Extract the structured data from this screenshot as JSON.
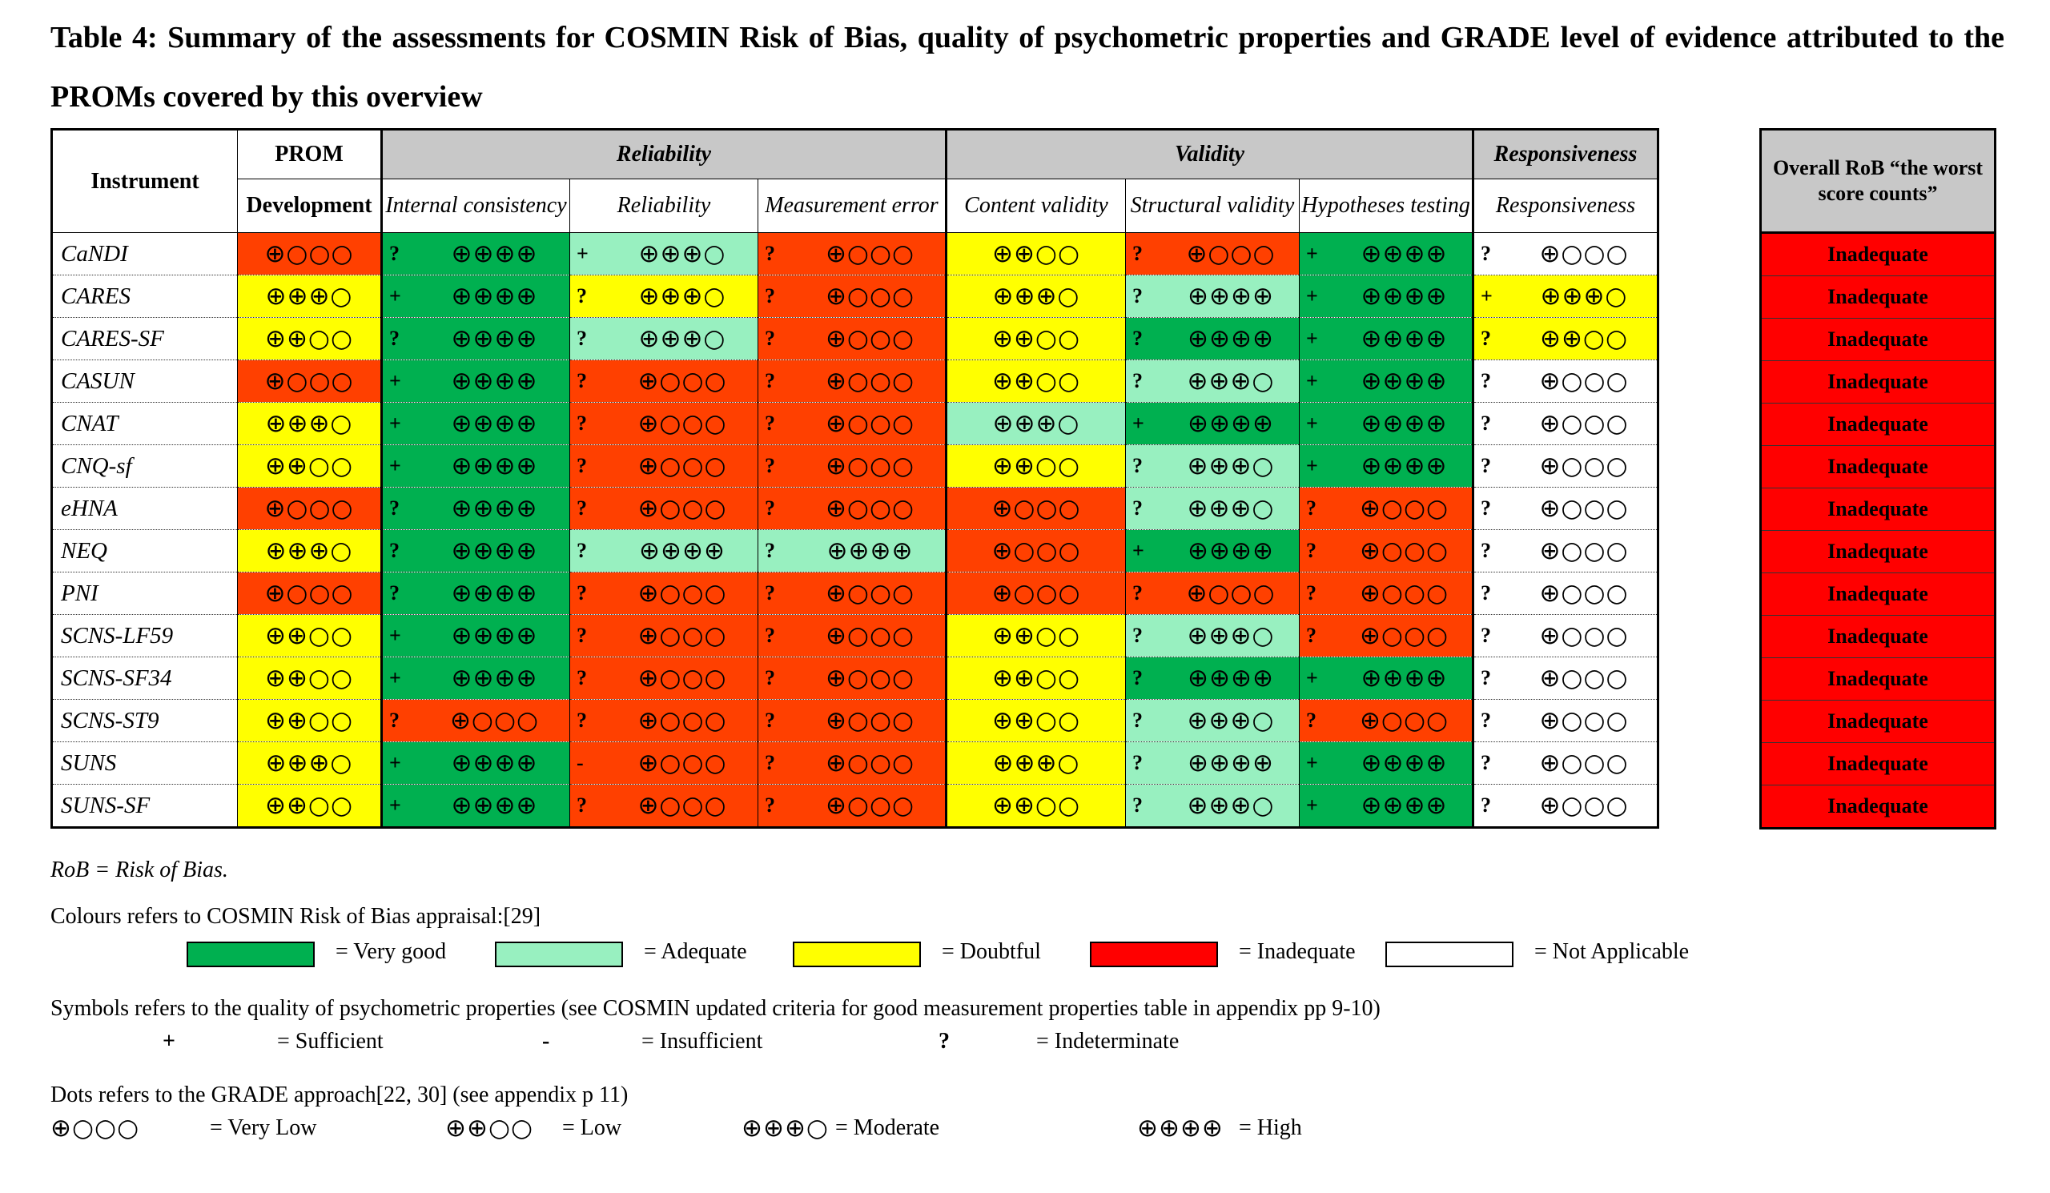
{
  "title": "Table 4:  Summary of the assessments for COSMIN Risk of Bias, quality of psychometric properties and GRADE level of evidence attributed to the PROMs covered by this overview",
  "header": {
    "instrument": "Instrument",
    "prom": "PROM",
    "development": "Development",
    "reliability_group": "Reliability",
    "validity_group": "Validity",
    "responsiveness_group": "Responsiveness",
    "internal_consistency": "Internal consistency",
    "reliability": "Reliability",
    "measurement_error": "Measurement error",
    "content_validity": "Content validity",
    "structural_validity": "Structural validity",
    "hypotheses_testing": "Hypotheses testing",
    "responsiveness": "Responsiveness"
  },
  "colors": {
    "very_good": "#00b050",
    "adequate": "#98f0c0",
    "doubtful": "#ffff00",
    "inadequate": "#ff0000",
    "not_applicable": "#ffffff"
  },
  "rows": [
    {
      "instrument": "CaNDI",
      "cells": [
        {
          "c": "in",
          "d": "⊕○○○"
        },
        {
          "c": "vg",
          "s": "?",
          "d": "⊕⊕⊕⊕"
        },
        {
          "c": "ad",
          "s": "+",
          "d": "⊕⊕⊕○"
        },
        {
          "c": "in",
          "s": "?",
          "d": "⊕○○○"
        },
        {
          "c": "db",
          "d": "⊕⊕○○"
        },
        {
          "c": "in",
          "s": "?",
          "d": "⊕○○○"
        },
        {
          "c": "vg",
          "s": "+",
          "d": "⊕⊕⊕⊕"
        },
        {
          "c": "na",
          "s": "?",
          "d": "⊕○○○"
        }
      ],
      "overall": "Inadequate"
    },
    {
      "instrument": "CARES",
      "cells": [
        {
          "c": "db",
          "d": "⊕⊕⊕○"
        },
        {
          "c": "vg",
          "s": "+",
          "d": "⊕⊕⊕⊕"
        },
        {
          "c": "db",
          "s": "?",
          "d": "⊕⊕⊕○"
        },
        {
          "c": "in",
          "s": "?",
          "d": "⊕○○○"
        },
        {
          "c": "db",
          "d": "⊕⊕⊕○"
        },
        {
          "c": "ad",
          "s": "?",
          "d": "⊕⊕⊕⊕"
        },
        {
          "c": "vg",
          "s": "+",
          "d": "⊕⊕⊕⊕"
        },
        {
          "c": "db",
          "s": "+",
          "d": "⊕⊕⊕○"
        }
      ],
      "overall": "Inadequate"
    },
    {
      "instrument": "CARES-SF",
      "cells": [
        {
          "c": "db",
          "d": "⊕⊕○○"
        },
        {
          "c": "vg",
          "s": "?",
          "d": "⊕⊕⊕⊕"
        },
        {
          "c": "ad",
          "s": "?",
          "d": "⊕⊕⊕○"
        },
        {
          "c": "in",
          "s": "?",
          "d": "⊕○○○"
        },
        {
          "c": "db",
          "d": "⊕⊕○○"
        },
        {
          "c": "vg",
          "s": "?",
          "d": "⊕⊕⊕⊕"
        },
        {
          "c": "vg",
          "s": "+",
          "d": "⊕⊕⊕⊕"
        },
        {
          "c": "db",
          "s": "?",
          "d": "⊕⊕○○"
        }
      ],
      "overall": "Inadequate"
    },
    {
      "instrument": "CASUN",
      "cells": [
        {
          "c": "in",
          "d": "⊕○○○"
        },
        {
          "c": "vg",
          "s": "+",
          "d": "⊕⊕⊕⊕"
        },
        {
          "c": "in",
          "s": "?",
          "d": "⊕○○○"
        },
        {
          "c": "in",
          "s": "?",
          "d": "⊕○○○"
        },
        {
          "c": "db",
          "d": "⊕⊕○○"
        },
        {
          "c": "ad",
          "s": "?",
          "d": "⊕⊕⊕○"
        },
        {
          "c": "vg",
          "s": "+",
          "d": "⊕⊕⊕⊕"
        },
        {
          "c": "na",
          "s": "?",
          "d": "⊕○○○"
        }
      ],
      "overall": "Inadequate"
    },
    {
      "instrument": "CNAT",
      "cells": [
        {
          "c": "db",
          "d": "⊕⊕⊕○"
        },
        {
          "c": "vg",
          "s": "+",
          "d": "⊕⊕⊕⊕"
        },
        {
          "c": "in",
          "s": "?",
          "d": "⊕○○○"
        },
        {
          "c": "in",
          "s": "?",
          "d": "⊕○○○"
        },
        {
          "c": "ad",
          "d": "⊕⊕⊕○"
        },
        {
          "c": "vg",
          "s": "+",
          "d": "⊕⊕⊕⊕"
        },
        {
          "c": "vg",
          "s": "+",
          "d": "⊕⊕⊕⊕"
        },
        {
          "c": "na",
          "s": "?",
          "d": "⊕○○○"
        }
      ],
      "overall": "Inadequate"
    },
    {
      "instrument": "CNQ-sf",
      "cells": [
        {
          "c": "db",
          "d": "⊕⊕○○"
        },
        {
          "c": "vg",
          "s": "+",
          "d": "⊕⊕⊕⊕"
        },
        {
          "c": "in",
          "s": "?",
          "d": "⊕○○○"
        },
        {
          "c": "in",
          "s": "?",
          "d": "⊕○○○"
        },
        {
          "c": "db",
          "d": "⊕⊕○○"
        },
        {
          "c": "ad",
          "s": "?",
          "d": "⊕⊕⊕○"
        },
        {
          "c": "vg",
          "s": "+",
          "d": "⊕⊕⊕⊕"
        },
        {
          "c": "na",
          "s": "?",
          "d": "⊕○○○"
        }
      ],
      "overall": "Inadequate"
    },
    {
      "instrument": "eHNA",
      "cells": [
        {
          "c": "in",
          "d": "⊕○○○"
        },
        {
          "c": "vg",
          "s": "?",
          "d": "⊕⊕⊕⊕"
        },
        {
          "c": "in",
          "s": "?",
          "d": "⊕○○○"
        },
        {
          "c": "in",
          "s": "?",
          "d": "⊕○○○"
        },
        {
          "c": "in",
          "d": "⊕○○○"
        },
        {
          "c": "ad",
          "s": "?",
          "d": "⊕⊕⊕○"
        },
        {
          "c": "in",
          "s": "?",
          "d": "⊕○○○"
        },
        {
          "c": "na",
          "s": "?",
          "d": "⊕○○○"
        }
      ],
      "overall": "Inadequate"
    },
    {
      "instrument": "NEQ",
      "cells": [
        {
          "c": "db",
          "d": "⊕⊕⊕○"
        },
        {
          "c": "vg",
          "s": "?",
          "d": "⊕⊕⊕⊕"
        },
        {
          "c": "ad",
          "s": "?",
          "d": "⊕⊕⊕⊕"
        },
        {
          "c": "ad",
          "s": "?",
          "d": "⊕⊕⊕⊕"
        },
        {
          "c": "in",
          "d": "⊕○○○"
        },
        {
          "c": "vg",
          "s": "+",
          "d": "⊕⊕⊕⊕"
        },
        {
          "c": "in",
          "s": "?",
          "d": "⊕○○○"
        },
        {
          "c": "na",
          "s": "?",
          "d": "⊕○○○"
        }
      ],
      "overall": "Inadequate"
    },
    {
      "instrument": "PNI",
      "cells": [
        {
          "c": "in",
          "d": "⊕○○○"
        },
        {
          "c": "vg",
          "s": "?",
          "d": "⊕⊕⊕⊕"
        },
        {
          "c": "in",
          "s": "?",
          "d": "⊕○○○"
        },
        {
          "c": "in",
          "s": "?",
          "d": "⊕○○○"
        },
        {
          "c": "in",
          "d": "⊕○○○"
        },
        {
          "c": "in",
          "s": "?",
          "d": "⊕○○○"
        },
        {
          "c": "in",
          "s": "?",
          "d": "⊕○○○"
        },
        {
          "c": "na",
          "s": "?",
          "d": "⊕○○○"
        }
      ],
      "overall": "Inadequate"
    },
    {
      "instrument": "SCNS-LF59",
      "cells": [
        {
          "c": "db",
          "d": "⊕⊕○○"
        },
        {
          "c": "vg",
          "s": "+",
          "d": "⊕⊕⊕⊕"
        },
        {
          "c": "in",
          "s": "?",
          "d": "⊕○○○"
        },
        {
          "c": "in",
          "s": "?",
          "d": "⊕○○○"
        },
        {
          "c": "db",
          "d": "⊕⊕○○"
        },
        {
          "c": "ad",
          "s": "?",
          "d": "⊕⊕⊕○"
        },
        {
          "c": "in",
          "s": "?",
          "d": "⊕○○○"
        },
        {
          "c": "na",
          "s": "?",
          "d": "⊕○○○"
        }
      ],
      "overall": "Inadequate"
    },
    {
      "instrument": "SCNS-SF34",
      "cells": [
        {
          "c": "db",
          "d": "⊕⊕○○"
        },
        {
          "c": "vg",
          "s": "+",
          "d": "⊕⊕⊕⊕"
        },
        {
          "c": "in",
          "s": "?",
          "d": "⊕○○○"
        },
        {
          "c": "in",
          "s": "?",
          "d": "⊕○○○"
        },
        {
          "c": "db",
          "d": "⊕⊕○○"
        },
        {
          "c": "vg",
          "s": "?",
          "d": "⊕⊕⊕⊕"
        },
        {
          "c": "vg",
          "s": "+",
          "d": "⊕⊕⊕⊕"
        },
        {
          "c": "na",
          "s": "?",
          "d": "⊕○○○"
        }
      ],
      "overall": "Inadequate"
    },
    {
      "instrument": "SCNS-ST9",
      "cells": [
        {
          "c": "db",
          "d": "⊕⊕○○"
        },
        {
          "c": "in",
          "s": "?",
          "d": "⊕○○○"
        },
        {
          "c": "in",
          "s": "?",
          "d": "⊕○○○"
        },
        {
          "c": "in",
          "s": "?",
          "d": "⊕○○○"
        },
        {
          "c": "db",
          "d": "⊕⊕○○"
        },
        {
          "c": "ad",
          "s": "?",
          "d": "⊕⊕⊕○"
        },
        {
          "c": "in",
          "s": "?",
          "d": "⊕○○○"
        },
        {
          "c": "na",
          "s": "?",
          "d": "⊕○○○"
        }
      ],
      "overall": "Inadequate"
    },
    {
      "instrument": "SUNS",
      "cells": [
        {
          "c": "db",
          "d": "⊕⊕⊕○"
        },
        {
          "c": "vg",
          "s": "+",
          "d": "⊕⊕⊕⊕"
        },
        {
          "c": "in",
          "s": "-",
          "d": "⊕○○○"
        },
        {
          "c": "in",
          "s": "?",
          "d": "⊕○○○"
        },
        {
          "c": "db",
          "d": "⊕⊕⊕○"
        },
        {
          "c": "ad",
          "s": "?",
          "d": "⊕⊕⊕⊕"
        },
        {
          "c": "vg",
          "s": "+",
          "d": "⊕⊕⊕⊕"
        },
        {
          "c": "na",
          "s": "?",
          "d": "⊕○○○"
        }
      ],
      "overall": "Inadequate"
    },
    {
      "instrument": "SUNS-SF",
      "cells": [
        {
          "c": "db",
          "d": "⊕⊕○○"
        },
        {
          "c": "vg",
          "s": "+",
          "d": "⊕⊕⊕⊕"
        },
        {
          "c": "in",
          "s": "?",
          "d": "⊕○○○"
        },
        {
          "c": "in",
          "s": "?",
          "d": "⊕○○○"
        },
        {
          "c": "db",
          "d": "⊕⊕○○"
        },
        {
          "c": "ad",
          "s": "?",
          "d": "⊕⊕⊕○"
        },
        {
          "c": "vg",
          "s": "+",
          "d": "⊕⊕⊕⊕"
        },
        {
          "c": "na",
          "s": "?",
          "d": "⊕○○○"
        }
      ],
      "overall": "Inadequate"
    }
  ],
  "overall_header": "Overall RoB “the worst score counts”",
  "notes": {
    "rob": "RoB = Risk of Bias.",
    "colours_heading": "Colours refers to COSMIN Risk of Bias appraisal:[29]",
    "symbols_heading": "Symbols refers to the quality of psychometric properties (see COSMIN updated criteria for good measurement properties table in appendix pp 9-10)",
    "dots_heading": "Dots refers to the GRADE approach[22, 30] (see appendix p 11)"
  },
  "colour_legend": [
    {
      "label": "= Very good",
      "color": "#00b050"
    },
    {
      "label": "= Adequate",
      "color": "#98f0c0"
    },
    {
      "label": "= Doubtful",
      "color": "#ffff00"
    },
    {
      "label": "= Inadequate",
      "color": "#ff0000"
    },
    {
      "label": "= Not Applicable",
      "color": "#ffffff"
    }
  ],
  "symbol_legend": [
    {
      "symbol": "+",
      "label": "= Sufficient"
    },
    {
      "symbol": "-",
      "label": "= Insufficient"
    },
    {
      "symbol": "?",
      "label": "= Indeterminate"
    }
  ],
  "grade_legend": [
    {
      "dots": "⊕○○○",
      "label": "= Very Low"
    },
    {
      "dots": "⊕⊕○○",
      "label": "= Low"
    },
    {
      "dots": "⊕⊕⊕○",
      "label": "= Moderate"
    },
    {
      "dots": "⊕⊕⊕⊕",
      "label": "= High"
    }
  ]
}
